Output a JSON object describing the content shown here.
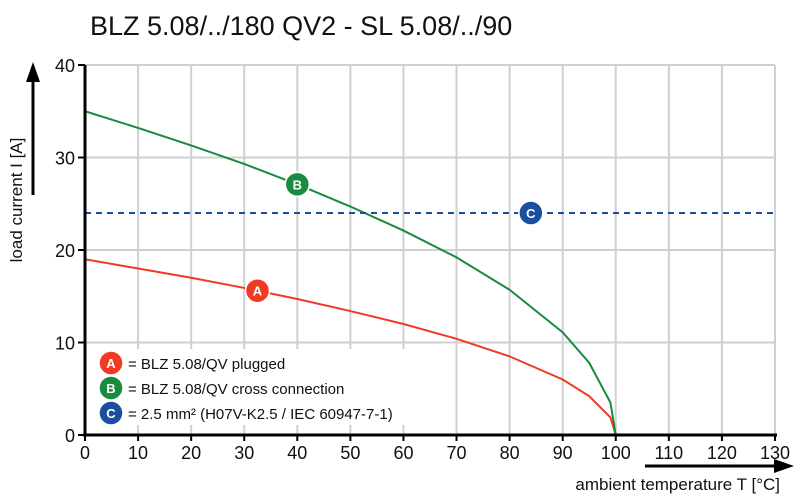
{
  "chart_data": {
    "type": "line",
    "title": "BLZ 5.08/../180 QV2 - SL 5.08/../90",
    "xlabel": "ambient temperature T [°C]",
    "ylabel": "load current I [A]",
    "xlim": [
      0,
      130
    ],
    "ylim": [
      0,
      40
    ],
    "xticks": [
      0,
      10,
      20,
      30,
      40,
      50,
      60,
      70,
      80,
      90,
      100,
      110,
      120,
      130
    ],
    "yticks": [
      0,
      10,
      20,
      30,
      40
    ],
    "grid": true,
    "legend_position": "bottom-left",
    "series": [
      {
        "marker": "A",
        "name": "= BLZ 5.08/QV plugged",
        "color": "#f03a23",
        "style": "solid",
        "x": [
          0,
          10,
          20,
          30,
          40,
          50,
          60,
          70,
          80,
          90,
          95,
          99,
          100
        ],
        "y": [
          19,
          18.0,
          17.0,
          15.9,
          14.7,
          13.4,
          12.0,
          10.4,
          8.5,
          6.0,
          4.2,
          1.9,
          0
        ],
        "marker_x": 32.5
      },
      {
        "marker": "B",
        "name": "= BLZ 5.08/QV cross connection",
        "color": "#1a8a3f",
        "style": "solid",
        "x": [
          0,
          10,
          20,
          30,
          40,
          50,
          60,
          70,
          80,
          90,
          95,
          99,
          100
        ],
        "y": [
          35,
          33.2,
          31.3,
          29.3,
          27.1,
          24.7,
          22.1,
          19.2,
          15.7,
          11.1,
          7.8,
          3.5,
          0
        ],
        "marker_x": 40
      },
      {
        "marker": "C",
        "name": "= 2.5 mm² (H07V-K2.5 / IEC 60947-7-1)",
        "color": "#1a4fa0",
        "style": "dashed",
        "x": [
          0,
          130
        ],
        "y": [
          24,
          24
        ],
        "marker_x": 84
      }
    ]
  }
}
